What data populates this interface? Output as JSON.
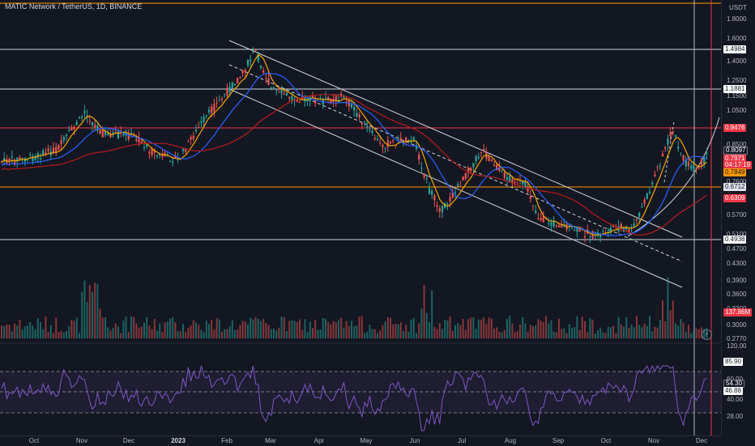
{
  "header": {
    "symbol_title": "MATIC Network / TetherUS, 1D, BINANCE"
  },
  "price_axis": {
    "currency": "USDT",
    "ticks": [
      "1.8000",
      "1.6000",
      "1.4000",
      "1.2500",
      "1.1500",
      "1.0500",
      "0.8500",
      "0.7600",
      "0.5700",
      "0.5100",
      "0.4700",
      "0.4300",
      "0.3900",
      "0.3600",
      "0.3300",
      "0.3000",
      "0.2770"
    ]
  },
  "price_tags": {
    "level_1": "1.4984",
    "level_2": "1.1881",
    "level_3": "0.9476",
    "close_a": "0.8097",
    "last_price": "0.7971",
    "countdown": "04:17:19",
    "ma_value": "0.7849",
    "level_4": "0.6712",
    "ma_slow": "0.6309",
    "level_5": "0.4938",
    "volume": "137.86M"
  },
  "rsi_axis": {
    "ticks": [
      "120.00",
      "60.00",
      "40.00",
      "28.00"
    ],
    "tags": {
      "high": "85.90",
      "rsi": "54.30",
      "ma": "46.88"
    }
  },
  "time_axis": {
    "labels": [
      "Oct",
      "Nov",
      "Dec",
      "2023",
      "Feb",
      "Mar",
      "Apr",
      "May",
      "Jun",
      "Jul",
      "Aug",
      "Sep",
      "Oct",
      "Nov",
      "Dec"
    ]
  },
  "colors": {
    "background": "#131722",
    "up": "#26a69a",
    "down": "#ef5350",
    "ma_fast": "#f7a600",
    "ma_mid": "#2962ff",
    "ma_slow": "#b71c1c",
    "rsi": "#7e57c2",
    "level_red": "#f23645",
    "level_orange": "#ff9800",
    "level_white": "#d1d4dc"
  },
  "icons": {
    "lightning": "lightning-icon"
  }
}
